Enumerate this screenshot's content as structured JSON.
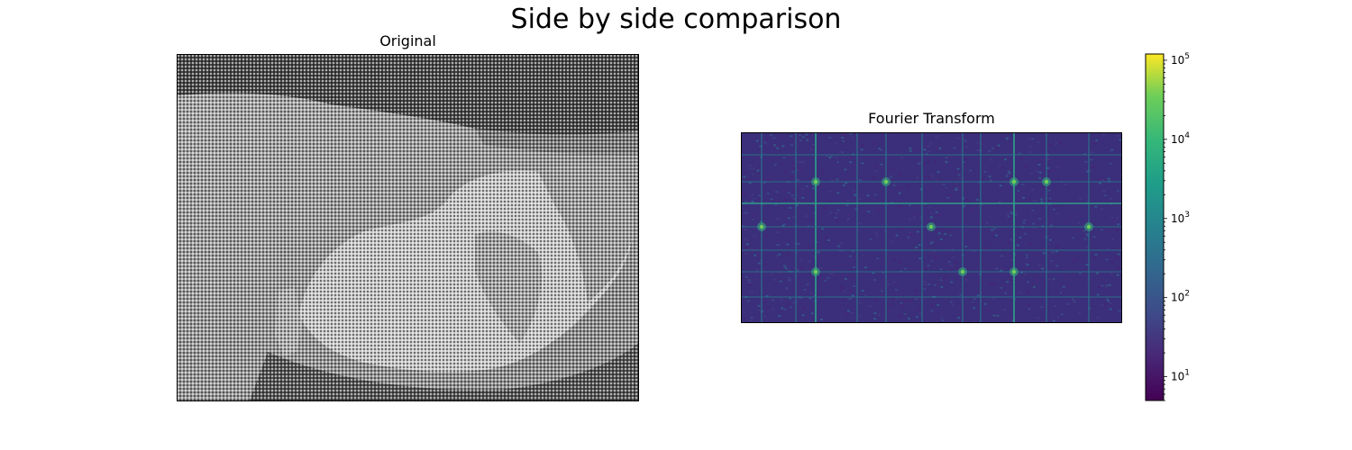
{
  "figure": {
    "title": "Side by side comparison"
  },
  "panels": {
    "original": {
      "title": "Original"
    },
    "fourier": {
      "title": "Fourier Transform"
    }
  },
  "colors": {
    "viridis_low": "#440154",
    "viridis_mid_low": "#3b528b",
    "viridis_mid": "#21918c",
    "viridis_mid_high": "#5ec962",
    "viridis_high": "#fde725",
    "image_dark": "#3a3a3a",
    "image_light": "#bdbdbd"
  },
  "chart_data": [
    {
      "type": "heatmap",
      "title": "Original",
      "colormap": "gray",
      "axes_visible": false,
      "description_subject": "grayscale photo with periodic noise pattern"
    },
    {
      "type": "heatmap",
      "title": "Fourier Transform",
      "colormap": "viridis",
      "scale": "log",
      "axes_visible": false,
      "colorbar": {
        "scale": "log",
        "range": [
          5,
          120000
        ],
        "ticks": [
          {
            "value": 10,
            "base": "10",
            "exp": "1"
          },
          {
            "value": 100,
            "base": "10",
            "exp": "2"
          },
          {
            "value": 1000,
            "base": "10",
            "exp": "3"
          },
          {
            "value": 10000,
            "base": "10",
            "exp": "4"
          },
          {
            "value": 100000,
            "base": "10",
            "exp": "5"
          }
        ]
      }
    }
  ]
}
